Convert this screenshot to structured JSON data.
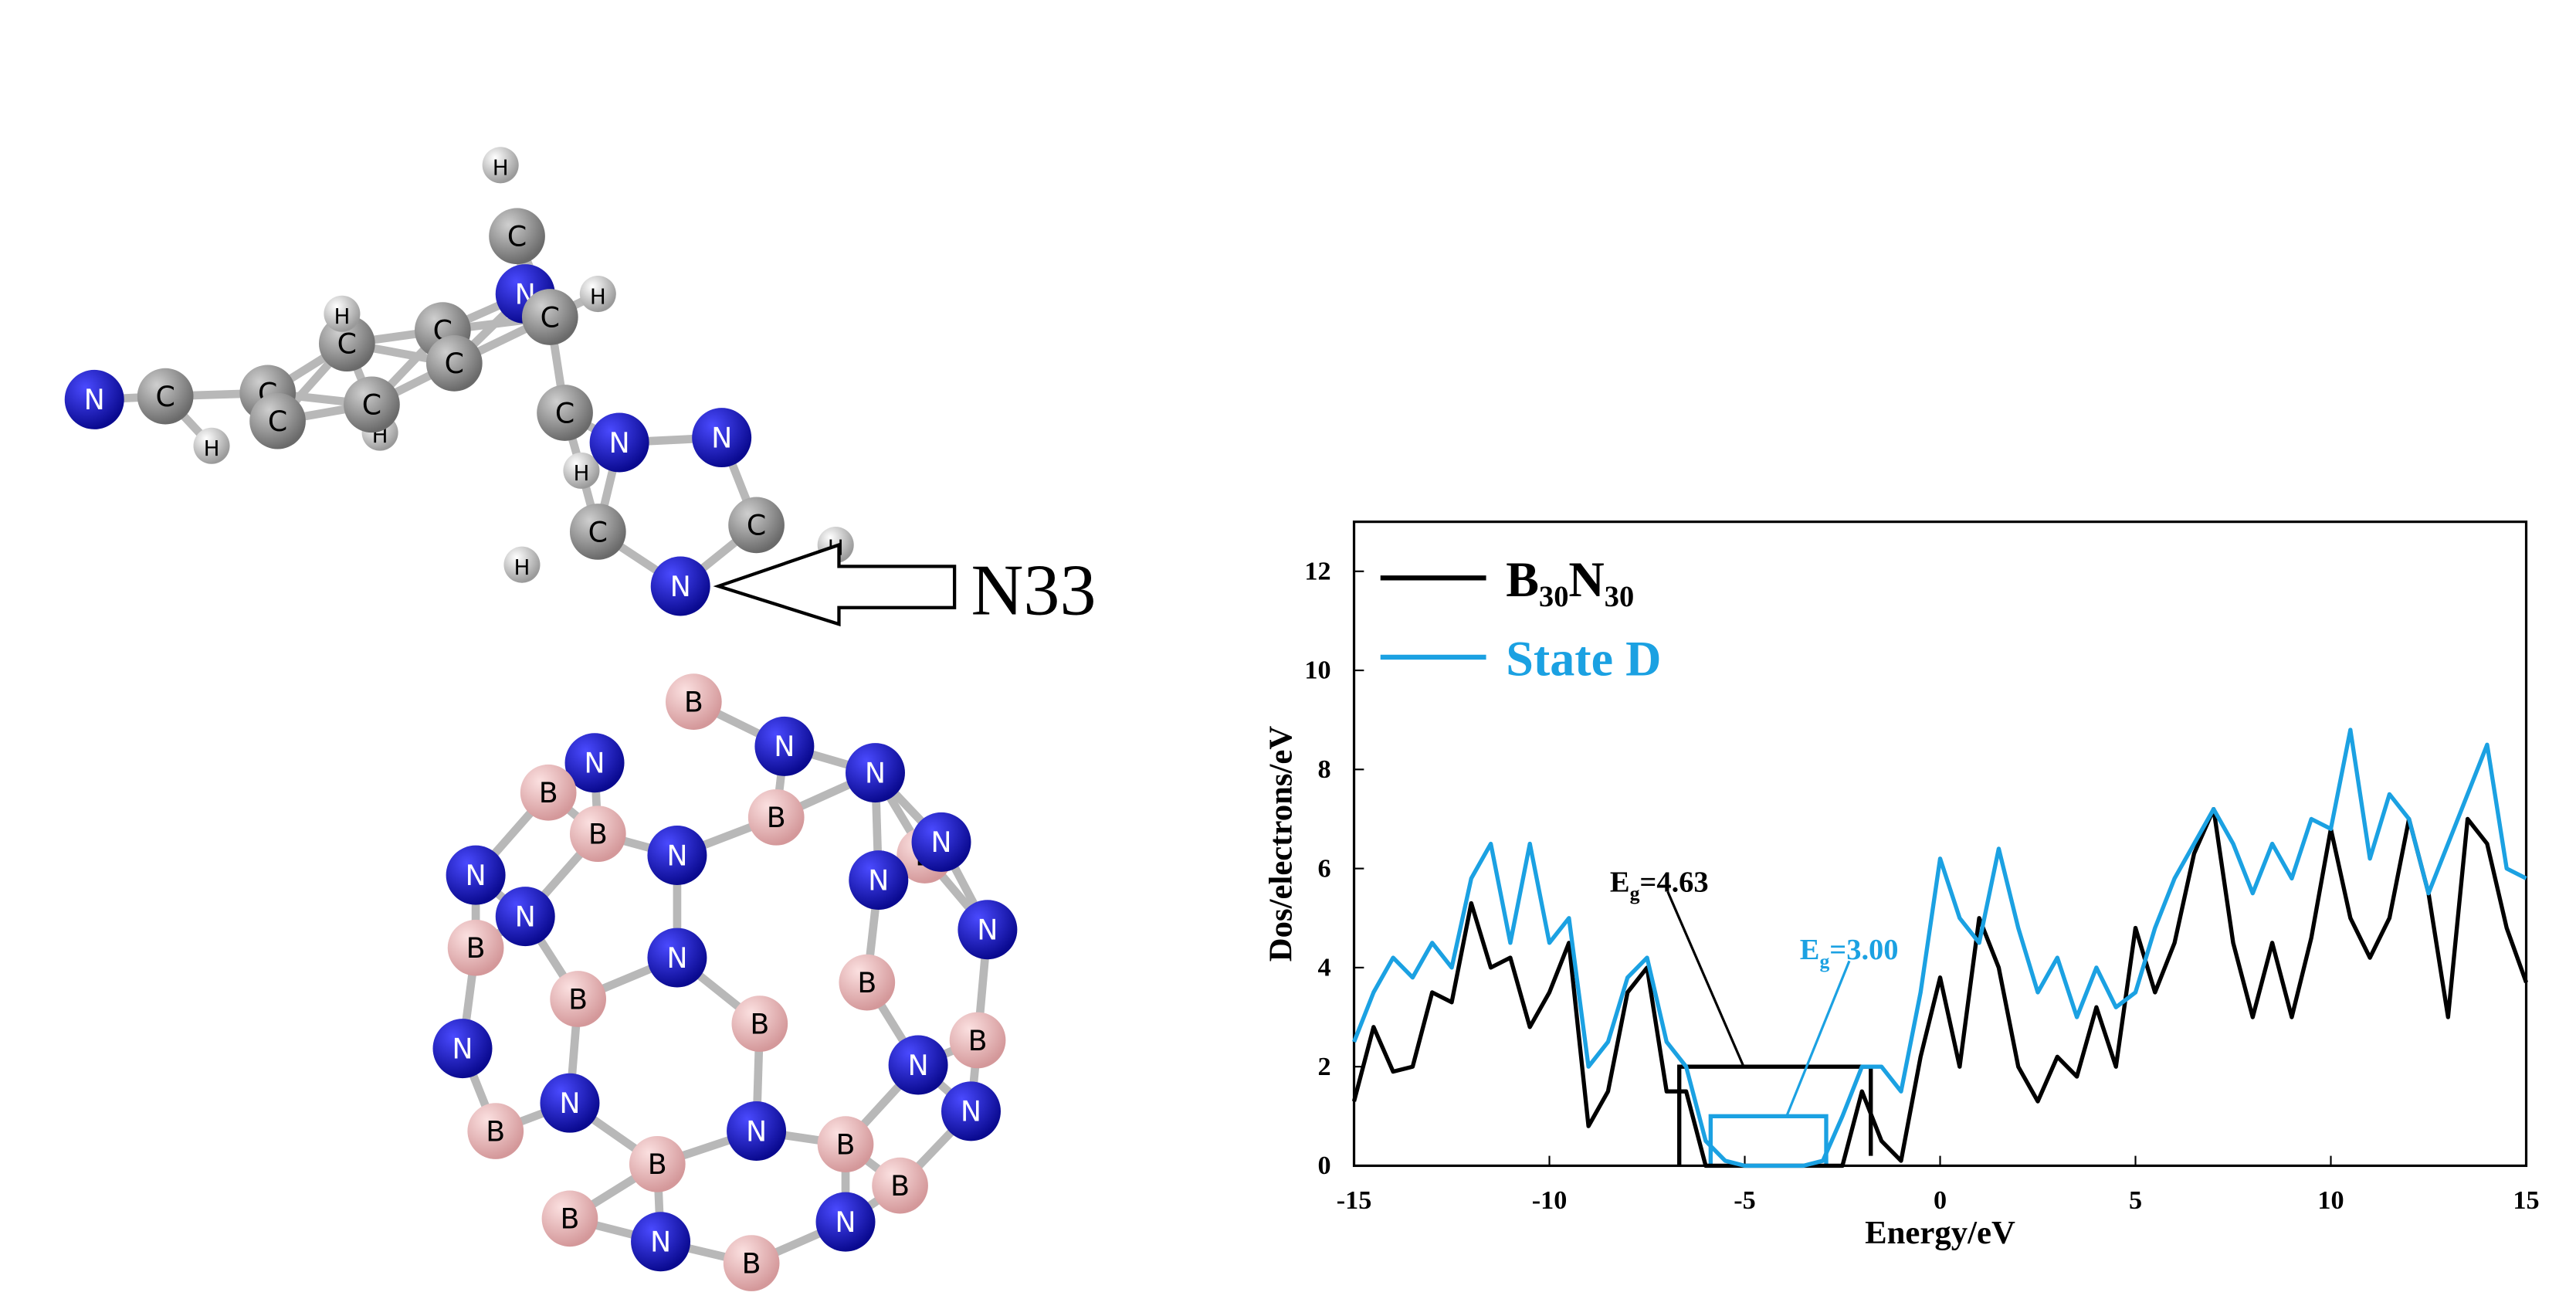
{
  "molecule": {
    "atoms": [
      "H",
      "C",
      "N",
      "H",
      "C",
      "C",
      "H",
      "N",
      "N",
      "C",
      "H",
      "C",
      "H",
      "N",
      "N",
      "C",
      "C",
      "C",
      "H",
      "H",
      "C",
      "C",
      "H",
      "C",
      "C",
      "B",
      "N",
      "N",
      "N",
      "B",
      "B",
      "N",
      "B",
      "B",
      "N",
      "N",
      "N",
      "N",
      "N",
      "B",
      "N",
      "B",
      "B",
      "B",
      "N",
      "B",
      "N",
      "N",
      "N",
      "B",
      "B",
      "B",
      "N",
      "B",
      "B",
      "N",
      "N",
      "B"
    ],
    "callout": "N33"
  },
  "chart_data": {
    "type": "line",
    "xlabel": "Energy/eV",
    "ylabel": "Dos/electrons/eV",
    "x": [
      -15,
      -14.5,
      -14,
      -13.5,
      -13,
      -12.5,
      -12,
      -11.5,
      -11,
      -10.5,
      -10,
      -9.5,
      -9,
      -8.5,
      -8,
      -7.5,
      -7,
      -6.5,
      -6,
      -5.5,
      -5,
      -4.5,
      -4,
      -3.5,
      -3,
      -2.5,
      -2,
      -1.5,
      -1,
      -0.5,
      0,
      0.5,
      1,
      1.5,
      2,
      2.5,
      3,
      3.5,
      4,
      4.5,
      5,
      5.5,
      6,
      6.5,
      7,
      7.5,
      8,
      8.5,
      9,
      9.5,
      10,
      10.5,
      11,
      11.5,
      12,
      12.5,
      13,
      13.5,
      14,
      14.5,
      15
    ],
    "series": [
      {
        "name": "B₃₀N₃₀",
        "color": "#000000",
        "values": [
          1.3,
          2.8,
          1.9,
          2.0,
          3.5,
          3.3,
          5.3,
          4.0,
          4.2,
          2.8,
          3.5,
          4.5,
          0.8,
          1.5,
          3.5,
          4.0,
          1.5,
          1.5,
          0,
          0,
          0,
          0,
          0,
          0,
          0,
          0,
          1.5,
          0.5,
          0.1,
          2.2,
          3.8,
          2.0,
          5.0,
          4.0,
          2.0,
          1.3,
          2.2,
          1.8,
          3.2,
          2.0,
          4.8,
          3.5,
          4.5,
          6.3,
          7.2,
          4.5,
          3.0,
          4.5,
          3.0,
          4.6,
          6.8,
          5.0,
          4.2,
          5.0,
          7.0,
          5.5,
          3.0,
          7.0,
          6.5,
          4.8,
          3.7
        ]
      },
      {
        "name": "State D",
        "color": "#1ba1e2",
        "values": [
          2.5,
          3.5,
          4.2,
          3.8,
          4.5,
          4.0,
          5.8,
          6.5,
          4.5,
          6.5,
          4.5,
          5.0,
          2.0,
          2.5,
          3.8,
          4.2,
          2.5,
          2.0,
          0.5,
          0.1,
          0,
          0,
          0,
          0,
          0.1,
          1.0,
          2.0,
          2.0,
          1.5,
          3.5,
          6.2,
          5.0,
          4.5,
          6.4,
          4.8,
          3.5,
          4.2,
          3.0,
          4.0,
          3.2,
          3.5,
          4.8,
          5.8,
          6.5,
          7.2,
          6.5,
          5.5,
          6.5,
          5.8,
          7.0,
          6.8,
          8.8,
          6.2,
          7.5,
          7.0,
          5.5,
          6.5,
          7.5,
          8.5,
          6.0,
          5.8
        ]
      }
    ],
    "xlim": [
      -15,
      15
    ],
    "ylim": [
      0,
      13
    ],
    "xticks": [
      -15,
      -10,
      -5,
      0,
      5,
      10,
      15
    ],
    "yticks": [
      0,
      2,
      4,
      6,
      8,
      10,
      12
    ],
    "grid": false,
    "legend": "upper left",
    "annotations": [
      {
        "parts": [
          "E",
          "g",
          "=4.63"
        ],
        "color": "#000000"
      },
      {
        "parts": [
          "E",
          "g",
          "=3.00"
        ],
        "color": "#1ba1e2"
      }
    ]
  }
}
